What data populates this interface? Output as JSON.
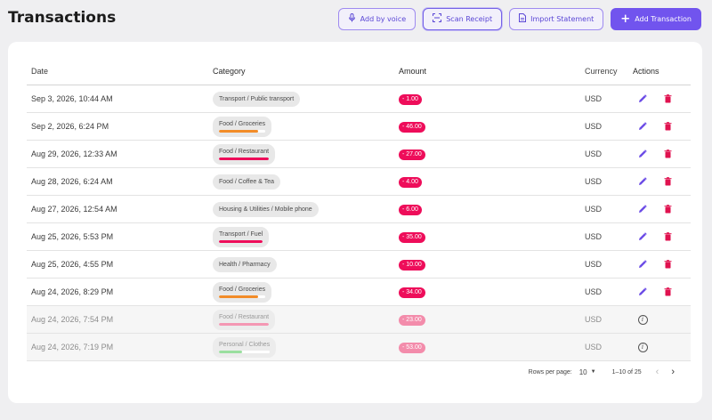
{
  "page": {
    "title": "Transactions"
  },
  "toolbar": {
    "add_by_voice": "Add by voice",
    "scan_receipt": "Scan Receipt",
    "import_statement": "Import Statement",
    "add_transaction": "Add Transaction"
  },
  "colors": {
    "accent": "#7154ee",
    "amount": "#ee0d5a",
    "edit": "#6b4ce6",
    "delete": "#e0124f"
  },
  "table": {
    "headers": {
      "date": "Date",
      "category": "Category",
      "amount": "Amount",
      "currency": "Currency",
      "actions": "Actions"
    },
    "rows": [
      {
        "date": "Sep 3, 2026, 10:44 AM",
        "category": "Transport / Public transport",
        "amount": "- 1.00",
        "currency": "USD",
        "bar": null,
        "muted": false
      },
      {
        "date": "Sep 2, 2026, 6:24 PM",
        "category": "Food / Groceries",
        "amount": "- 46.00",
        "currency": "USD",
        "bar": {
          "color": "#f28c28",
          "fraction": 0.85
        },
        "muted": false
      },
      {
        "date": "Aug 29, 2026, 12:33 AM",
        "category": "Food / Restaurant",
        "amount": "- 27.00",
        "currency": "USD",
        "bar": {
          "color": "#ee0d5a",
          "fraction": 1.0
        },
        "muted": false
      },
      {
        "date": "Aug 28, 2026, 6:24 AM",
        "category": "Food / Coffee & Tea",
        "amount": "- 4.00",
        "currency": "USD",
        "bar": null,
        "muted": false
      },
      {
        "date": "Aug 27, 2026, 12:54 AM",
        "category": "Housing & Utilities / Mobile phone",
        "amount": "- 6.00",
        "currency": "USD",
        "bar": null,
        "muted": false
      },
      {
        "date": "Aug 25, 2026, 5:53 PM",
        "category": "Transport / Fuel",
        "amount": "- 35.00",
        "currency": "USD",
        "bar": {
          "color": "#ee0d5a",
          "fraction": 1.0
        },
        "muted": false
      },
      {
        "date": "Aug 25, 2026, 4:55 PM",
        "category": "Health / Pharmacy",
        "amount": "- 10.00",
        "currency": "USD",
        "bar": null,
        "muted": false
      },
      {
        "date": "Aug 24, 2026, 8:29 PM",
        "category": "Food / Groceries",
        "amount": "- 34.00",
        "currency": "USD",
        "bar": {
          "color": "#f28c28",
          "fraction": 0.85
        },
        "muted": false
      },
      {
        "date": "Aug 24, 2026, 7:54 PM",
        "category": "Food / Restaurant",
        "amount": "- 23.00",
        "currency": "USD",
        "bar": {
          "color": "#f38cab",
          "fraction": 1.0
        },
        "muted": true
      },
      {
        "date": "Aug 24, 2026, 7:19 PM",
        "category": "Personal / Clothes",
        "amount": "- 53.00",
        "currency": "USD",
        "bar": {
          "color": "#8fdc95",
          "fraction": 0.45
        },
        "muted": true
      }
    ]
  },
  "pagination": {
    "rows_per_page_label": "Rows per page:",
    "rows_per_page": "10",
    "range": "1–10 of 25"
  }
}
